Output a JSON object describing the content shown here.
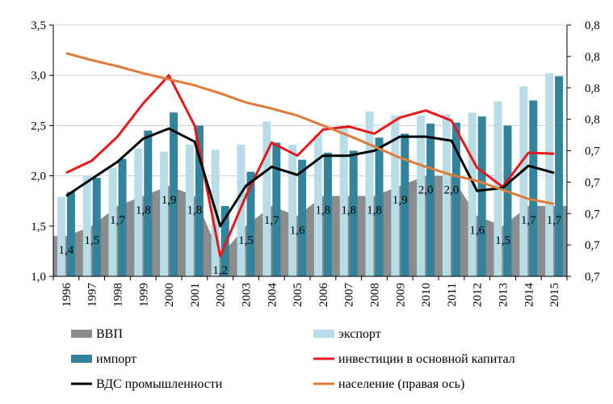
{
  "chart_data": {
    "type": "bar",
    "categories": [
      "1996",
      "1997",
      "1998",
      "1999",
      "2000",
      "2001",
      "2002",
      "2003",
      "2004",
      "2005",
      "2006",
      "2007",
      "2008",
      "2009",
      "2010",
      "2011",
      "2012",
      "2013",
      "2014",
      "2015"
    ],
    "y_left": {
      "ylim": [
        1.0,
        3.5
      ],
      "ticks": [
        "1,0",
        "1,5",
        "2,0",
        "2,5",
        "3,0",
        "3,5"
      ],
      "tick_values": [
        1.0,
        1.5,
        2.0,
        2.5,
        3.0,
        3.5
      ]
    },
    "y_right": {
      "ylim": [
        0.7,
        0.8
      ],
      "ticks": [
        "0,7",
        "0,7",
        "0,7",
        "0,7",
        "0,7",
        "0,8",
        "0,8",
        "0,8",
        "0,8"
      ],
      "tick_values": [
        0.7,
        0.7125,
        0.725,
        0.7375,
        0.75,
        0.7625,
        0.775,
        0.7875,
        0.8
      ]
    },
    "grid": "horizontal",
    "legend_position": "bottom",
    "series": [
      {
        "name": "ВВП",
        "kind": "area",
        "axis": "left",
        "color": "#8c8c8c",
        "values": [
          1.4,
          1.5,
          1.7,
          1.8,
          1.9,
          1.8,
          1.2,
          1.5,
          1.7,
          1.6,
          1.8,
          1.8,
          1.8,
          1.9,
          2.0,
          2.0,
          1.6,
          1.5,
          1.7,
          1.7
        ],
        "labels": [
          "1,4",
          "1,5",
          "1,7",
          "1,8",
          "1,9",
          "1,8",
          "1,2",
          "1,5",
          "1,7",
          "1,6",
          "1,8",
          "1,8",
          "1,8",
          "1,9",
          "2,0",
          "2,0",
          "1,6",
          "1,5",
          "1,7",
          "1,7"
        ]
      },
      {
        "name": "экспорт",
        "kind": "bar",
        "axis": "left",
        "color": "#b7dde8",
        "values": [
          1.79,
          2.0,
          2.08,
          2.27,
          2.24,
          2.31,
          2.26,
          2.31,
          2.54,
          2.31,
          2.41,
          2.5,
          2.64,
          2.6,
          2.6,
          2.61,
          2.63,
          2.74,
          2.89,
          3.02
        ]
      },
      {
        "name": "импорт",
        "kind": "bar",
        "axis": "left",
        "color": "#31849b",
        "values": [
          1.84,
          1.98,
          2.17,
          2.45,
          2.63,
          2.5,
          1.7,
          2.04,
          2.33,
          2.16,
          2.23,
          2.25,
          2.38,
          2.42,
          2.52,
          2.53,
          2.59,
          2.5,
          2.75,
          2.99
        ]
      },
      {
        "name": "инвестиции в основной капитал",
        "kind": "line",
        "axis": "left",
        "color": "#e8181b",
        "values": [
          2.03,
          2.15,
          2.39,
          2.72,
          3.0,
          2.5,
          1.2,
          1.8,
          2.33,
          2.2,
          2.46,
          2.49,
          2.42,
          2.58,
          2.65,
          2.55,
          2.08,
          1.89,
          2.23,
          2.22
        ]
      },
      {
        "name": "ВДС промышленности",
        "kind": "line",
        "axis": "left",
        "color": "#000000",
        "values": [
          1.8,
          1.97,
          2.14,
          2.37,
          2.47,
          2.34,
          1.5,
          1.9,
          2.09,
          2.01,
          2.2,
          2.2,
          2.25,
          2.39,
          2.39,
          2.35,
          1.85,
          1.88,
          2.1,
          2.03
        ]
      },
      {
        "name": "население (правая ось)",
        "kind": "line",
        "axis": "left",
        "color": "#e07b39",
        "values": [
          3.22,
          3.15,
          3.09,
          3.02,
          2.96,
          2.9,
          2.82,
          2.73,
          2.67,
          2.6,
          2.5,
          2.4,
          2.29,
          2.18,
          2.09,
          2.01,
          1.95,
          1.86,
          1.77,
          1.72
        ]
      }
    ]
  }
}
